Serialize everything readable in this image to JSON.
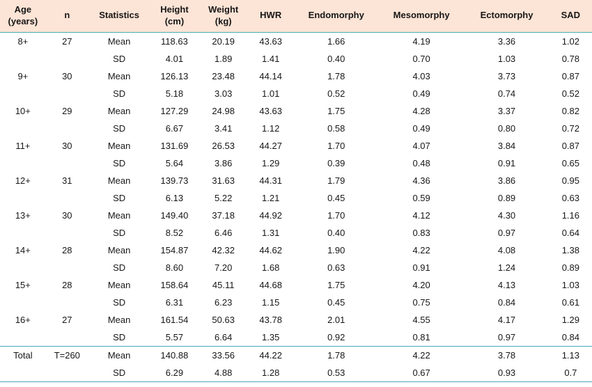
{
  "table": {
    "header_bg": "#fce4d6",
    "rule_color": "#4aa8b8",
    "text_color": "#171717",
    "font_size_header": 13,
    "font_size_body": 13,
    "columns": [
      {
        "key": "age",
        "label": "Age (years)"
      },
      {
        "key": "n",
        "label": "n"
      },
      {
        "key": "stat",
        "label": "Statistics"
      },
      {
        "key": "h",
        "label": "Height (cm)"
      },
      {
        "key": "w",
        "label": "Weight (kg)"
      },
      {
        "key": "hwr",
        "label": "HWR"
      },
      {
        "key": "endo",
        "label": "Endomorphy"
      },
      {
        "key": "meso",
        "label": "Mesomorphy"
      },
      {
        "key": "ecto",
        "label": "Ectomorphy"
      },
      {
        "key": "sad",
        "label": "SAD"
      }
    ],
    "groups": [
      {
        "age": "8+",
        "n": "27",
        "mean": [
          "118.63",
          "20.19",
          "43.63",
          "1.66",
          "4.19",
          "3.36",
          "1.02"
        ],
        "sd": [
          "4.01",
          "1.89",
          "1.41",
          "0.40",
          "0.70",
          "1.03",
          "0.78"
        ]
      },
      {
        "age": "9+",
        "n": "30",
        "mean": [
          "126.13",
          "23.48",
          "44.14",
          "1.78",
          "4.03",
          "3.73",
          "0.87"
        ],
        "sd": [
          "5.18",
          "3.03",
          "1.01",
          "0.52",
          "0.49",
          "0.74",
          "0.52"
        ]
      },
      {
        "age": "10+",
        "n": "29",
        "mean": [
          "127.29",
          "24.98",
          "43.63",
          "1.75",
          "4.28",
          "3.37",
          "0.82"
        ],
        "sd": [
          "6.67",
          "3.41",
          "1.12",
          "0.58",
          "0.49",
          "0.80",
          "0.72"
        ]
      },
      {
        "age": "11+",
        "n": "30",
        "mean": [
          "131.69",
          "26.53",
          "44.27",
          "1.70",
          "4.07",
          "3.84",
          "0.87"
        ],
        "sd": [
          "5.64",
          "3.86",
          "1.29",
          "0.39",
          "0.48",
          "0.91",
          "0.65"
        ]
      },
      {
        "age": "12+",
        "n": "31",
        "mean": [
          "139.73",
          "31.63",
          "44.31",
          "1.79",
          "4.36",
          "3.86",
          "0.95"
        ],
        "sd": [
          "6.13",
          "5.22",
          "1.21",
          "0.45",
          "0.59",
          "0.89",
          "0.63"
        ]
      },
      {
        "age": "13+",
        "n": "30",
        "mean": [
          "149.40",
          "37.18",
          "44.92",
          "1.70",
          "4.12",
          "4.30",
          "1.16"
        ],
        "sd": [
          "8.52",
          "6.46",
          "1.31",
          "0.40",
          "0.83",
          "0.97",
          "0.64"
        ]
      },
      {
        "age": "14+",
        "n": "28",
        "mean": [
          "154.87",
          "42.32",
          "44.62",
          "1.90",
          "4.22",
          "4.08",
          "1.38"
        ],
        "sd": [
          "8.60",
          "7.20",
          "1.68",
          "0.63",
          "0.91",
          "1.24",
          "0.89"
        ]
      },
      {
        "age": "15+",
        "n": "28",
        "mean": [
          "158.64",
          "45.11",
          "44.68",
          "1.75",
          "4.20",
          "4.13",
          "1.03"
        ],
        "sd": [
          "6.31",
          "6.23",
          "1.15",
          "0.45",
          "0.75",
          "0.84",
          "0.61"
        ]
      },
      {
        "age": "16+",
        "n": "27",
        "mean": [
          "161.54",
          "50.63",
          "43.78",
          "2.01",
          "4.55",
          "4.17",
          "1.29"
        ],
        "sd": [
          "5.57",
          "6.64",
          "1.35",
          "0.92",
          "0.81",
          "0.97",
          "0.84"
        ]
      }
    ],
    "total": {
      "age": "Total",
      "n": "T=260",
      "mean": [
        "140.88",
        "33.56",
        "44.22",
        "1.78",
        "4.22",
        "3.78",
        "1.13"
      ],
      "sd": [
        "6.29",
        "4.88",
        "1.28",
        "0.53",
        "0.67",
        "0.93",
        "0.7"
      ]
    },
    "stat_labels": {
      "mean": "Mean",
      "sd": "SD"
    }
  }
}
